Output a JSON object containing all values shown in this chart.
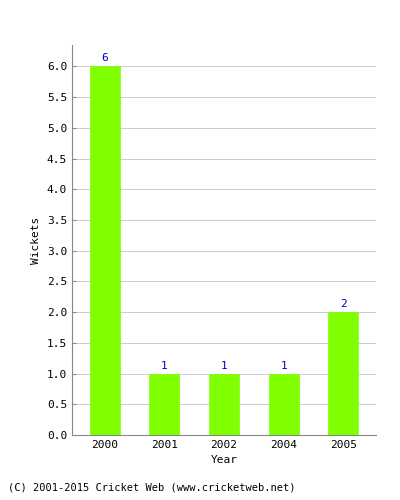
{
  "years": [
    "2000",
    "2001",
    "2002",
    "2004",
    "2005"
  ],
  "values": [
    6,
    1,
    1,
    1,
    2
  ],
  "bar_color": "#7fff00",
  "bar_edgecolor": "#7fff00",
  "ylabel": "Wickets",
  "xlabel": "Year",
  "ylim": [
    0,
    6.35
  ],
  "yticks": [
    0.0,
    0.5,
    1.0,
    1.5,
    2.0,
    2.5,
    3.0,
    3.5,
    4.0,
    4.5,
    5.0,
    5.5,
    6.0
  ],
  "label_color": "#0000cc",
  "label_fontsize": 8,
  "axis_label_fontsize": 8,
  "tick_fontsize": 8,
  "footer_text": "(C) 2001-2015 Cricket Web (www.cricketweb.net)",
  "footer_fontsize": 7.5,
  "background_color": "#ffffff",
  "grid_color": "#cccccc",
  "spine_color": "#888888"
}
